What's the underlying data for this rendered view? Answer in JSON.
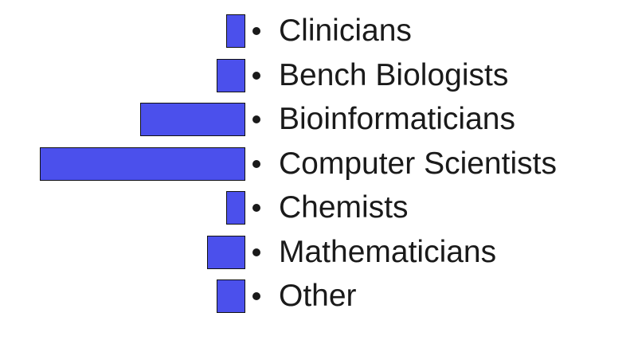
{
  "chart_data": {
    "type": "bar",
    "orientation": "horizontal",
    "categories": [
      "Clinicians",
      "Bench Biologists",
      "Bioinformaticians",
      "Computer Scientists",
      "Chemists",
      "Mathematicians",
      "Other"
    ],
    "values": [
      4,
      6,
      22,
      43,
      4,
      8,
      6
    ],
    "title": "",
    "xlabel": "",
    "ylabel": "",
    "xlim": [
      0,
      43
    ],
    "grid": false,
    "legend": "none",
    "bar_color": "#4b50ec"
  }
}
